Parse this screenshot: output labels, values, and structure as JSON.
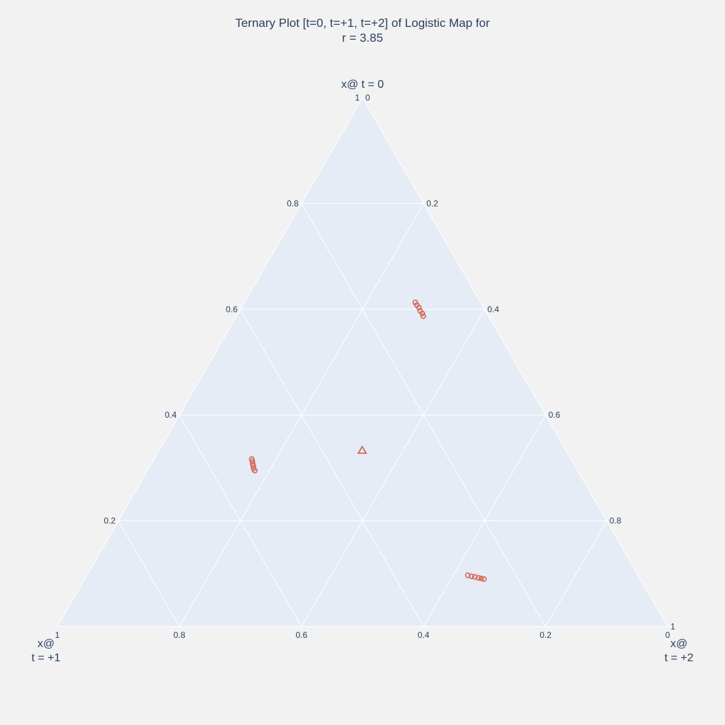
{
  "chart_data": {
    "type": "scatter",
    "subtype": "ternary",
    "title_line1": "Ternary Plot [t=0, t=+1, t=+2] of Logistic Map for",
    "title_line2": "r = 3.85",
    "axes": {
      "a": {
        "title": "x@ t = 0",
        "ticks": [
          "0.2",
          "0.4",
          "0.6",
          "0.8",
          "1"
        ],
        "values": [
          0.2,
          0.4,
          0.6,
          0.8,
          1
        ]
      },
      "b": {
        "title_line1": "x@",
        "title_line2": "t = +1",
        "ticks": [
          "1",
          "0.8",
          "0.6",
          "0.4",
          "0.2",
          "0"
        ],
        "values": [
          1,
          0.8,
          0.6,
          0.4,
          0.2,
          0
        ]
      },
      "c": {
        "title_line1": "x@",
        "title_line2": "t = +2",
        "ticks": [
          "0",
          "0.2",
          "0.4",
          "0.6",
          "0.8",
          "1"
        ],
        "values": [
          0,
          0.2,
          0.4,
          0.6,
          0.8,
          1
        ]
      }
    },
    "grid": true,
    "marker_color": "#d4685a",
    "plot_bg": "#e5ecf6",
    "grid_color": "#ffffff",
    "series": [
      {
        "marker": "circle",
        "points": [
          [
            0.613,
            0.107,
            0.28
          ],
          [
            0.608,
            0.107,
            0.285
          ],
          [
            0.603,
            0.106,
            0.291
          ],
          [
            0.597,
            0.107,
            0.296
          ],
          [
            0.592,
            0.106,
            0.302
          ],
          [
            0.587,
            0.107,
            0.306
          ],
          [
            0.317,
            0.523,
            0.16
          ],
          [
            0.313,
            0.524,
            0.163
          ],
          [
            0.308,
            0.526,
            0.166
          ],
          [
            0.304,
            0.527,
            0.169
          ],
          [
            0.299,
            0.529,
            0.172
          ],
          [
            0.295,
            0.529,
            0.176
          ],
          [
            0.097,
            0.279,
            0.624
          ],
          [
            0.095,
            0.274,
            0.631
          ],
          [
            0.094,
            0.269,
            0.637
          ],
          [
            0.092,
            0.264,
            0.644
          ],
          [
            0.091,
            0.26,
            0.649
          ],
          [
            0.09,
            0.256,
            0.654
          ]
        ]
      },
      {
        "marker": "triangle-up-open",
        "points": [
          [
            0.333,
            0.334,
            0.333
          ]
        ]
      }
    ]
  }
}
